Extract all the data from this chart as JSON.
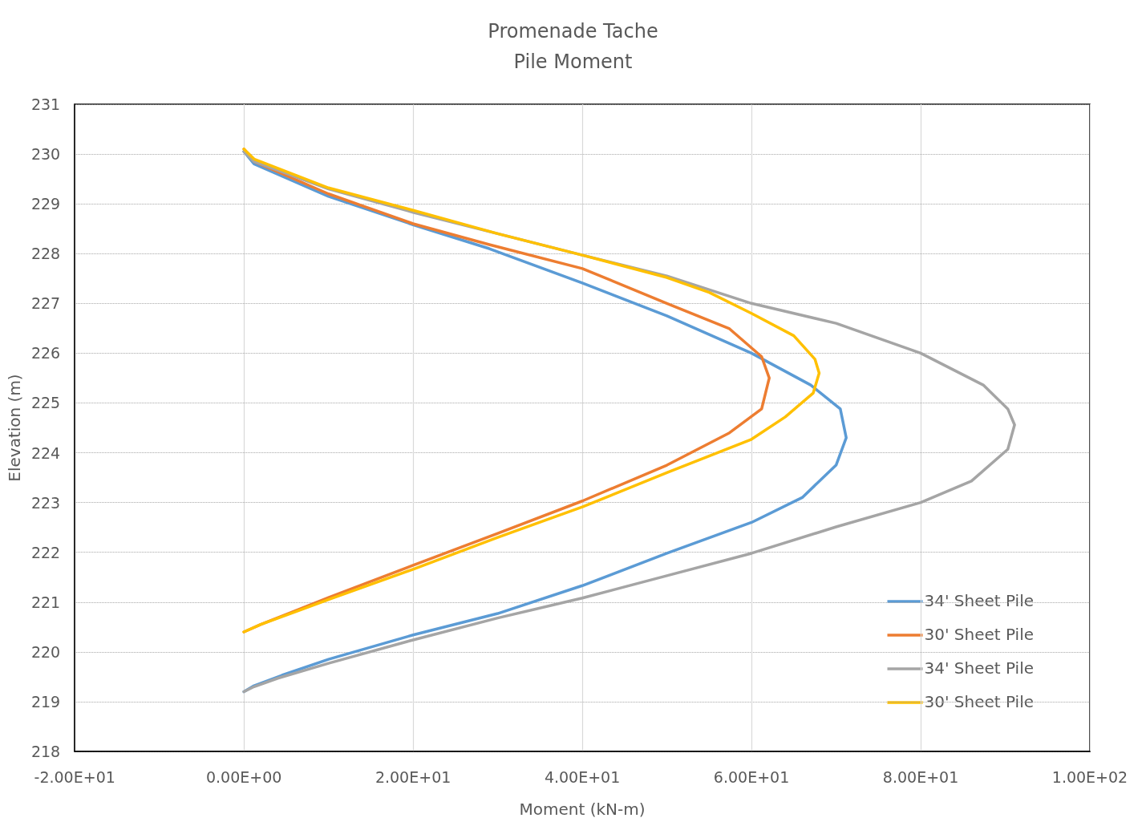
{
  "chart_data": {
    "type": "line",
    "title": "Promenade Tache",
    "subtitle": "Pile Moment",
    "xlabel": "Moment (kN-m)",
    "ylabel": "Elevation (m)",
    "xlim": [
      -20,
      100
    ],
    "xticks": [
      {
        "value": -20,
        "label": "-2.00E+01"
      },
      {
        "value": 0,
        "label": "0.00E+00"
      },
      {
        "value": 20,
        "label": "2.00E+01"
      },
      {
        "value": 40,
        "label": "4.00E+01"
      },
      {
        "value": 60,
        "label": "6.00E+01"
      },
      {
        "value": 80,
        "label": "8.00E+01"
      },
      {
        "value": 100,
        "label": "1.00E+02"
      }
    ],
    "ylim": [
      218,
      231
    ],
    "yticks": [
      218,
      219,
      220,
      221,
      222,
      223,
      224,
      225,
      226,
      227,
      228,
      229,
      230,
      231
    ],
    "grid": true,
    "legend": "bottom right",
    "marker": "none",
    "line_style": "solid",
    "series": [
      {
        "name": "34' Sheet Pile",
        "color": "#5b9bd5",
        "x": [
          0,
          1.2,
          10,
          20,
          29,
          40,
          50,
          60,
          67,
          70.5,
          71.2,
          70,
          66,
          60,
          50,
          40,
          30,
          20,
          10,
          4.5,
          1.2,
          0
        ],
        "values": [
          230.05,
          229.8,
          229.15,
          228.58,
          228.1,
          227.41,
          226.75,
          226.0,
          225.36,
          224.88,
          224.3,
          223.75,
          223.1,
          222.6,
          221.98,
          221.33,
          220.77,
          220.34,
          219.85,
          219.53,
          219.32,
          219.2
        ]
      },
      {
        "name": "30' Sheet Pile",
        "color": "#ed7d31",
        "x": [
          0,
          1.2,
          10,
          20,
          29,
          40,
          50,
          57.4,
          61.2,
          62.1,
          61.2,
          57.4,
          50,
          40,
          30,
          20,
          10,
          2,
          0
        ],
        "values": [
          230.1,
          229.85,
          229.2,
          228.6,
          228.18,
          227.7,
          227.0,
          226.49,
          225.93,
          225.5,
          224.88,
          224.4,
          223.75,
          223.03,
          222.38,
          221.74,
          221.09,
          220.55,
          220.4
        ]
      },
      {
        "name": "34' Sheet Pile",
        "color": "#a5a5a5",
        "x": [
          0,
          1.2,
          10,
          20,
          30,
          40,
          50,
          60,
          70,
          80,
          87.4,
          90.3,
          91.1,
          90.3,
          86,
          80,
          70,
          60,
          50,
          40,
          30,
          20,
          10,
          4,
          1.2,
          0
        ],
        "values": [
          230.05,
          229.85,
          229.3,
          228.83,
          228.4,
          227.97,
          227.55,
          227.0,
          226.6,
          226.0,
          225.36,
          224.88,
          224.56,
          224.07,
          223.43,
          223.0,
          222.51,
          221.98,
          221.53,
          221.08,
          220.68,
          220.24,
          219.77,
          219.47,
          219.3,
          219.2
        ]
      },
      {
        "name": "30' Sheet Pile",
        "color": "#ffc000",
        "x": [
          0,
          1.2,
          10,
          20,
          30,
          40,
          50,
          55,
          60,
          65,
          67.5,
          68,
          67.3,
          64,
          60,
          50,
          40,
          30,
          20,
          10,
          2,
          0
        ],
        "values": [
          230.1,
          229.9,
          229.32,
          228.87,
          228.4,
          227.97,
          227.52,
          227.22,
          226.8,
          226.35,
          225.88,
          225.6,
          225.2,
          224.72,
          224.27,
          223.6,
          222.91,
          222.3,
          221.66,
          221.05,
          220.55,
          220.4
        ]
      }
    ]
  }
}
